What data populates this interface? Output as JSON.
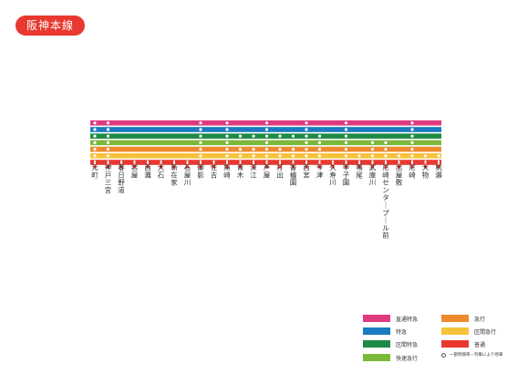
{
  "title": "阪神本線",
  "colors": {
    "badge": "#e8382f",
    "stop_dot": "#ffffff",
    "station_tick": "#e8382f",
    "station_label": "#333333"
  },
  "services": [
    {
      "id": "chokutsu_tokkyu",
      "name": "直通特急",
      "color": "#e03a7f"
    },
    {
      "id": "tokkyu",
      "name": "特急",
      "color": "#1a7bc1"
    },
    {
      "id": "kukan_tokkyu",
      "name": "区間特急",
      "color": "#1e8b45"
    },
    {
      "id": "kaisoku_kyuko",
      "name": "快速急行",
      "color": "#7cb93a"
    },
    {
      "id": "kyuko",
      "name": "急行",
      "color": "#ef8a2c"
    },
    {
      "id": "kukan_kyuko",
      "name": "区間急行",
      "color": "#f6c23a"
    },
    {
      "id": "futsu",
      "name": "普通",
      "color": "#e8382f"
    }
  ],
  "stations": [
    {
      "name": "元町",
      "stops": [
        "chokutsu_tokkyu",
        "tokkyu",
        "kukan_tokkyu",
        "kaisoku_kyuko",
        "kyuko",
        "kukan_kyuko",
        "futsu"
      ]
    },
    {
      "name": "神戸三宮",
      "stops": [
        "chokutsu_tokkyu",
        "tokkyu",
        "kukan_tokkyu",
        "kaisoku_kyuko",
        "kyuko",
        "kukan_kyuko",
        "futsu"
      ]
    },
    {
      "name": "春日野道",
      "stops": [
        "futsu"
      ]
    },
    {
      "name": "岩屋",
      "stops": [
        "futsu"
      ]
    },
    {
      "name": "西灘",
      "stops": [
        "futsu"
      ]
    },
    {
      "name": "大石",
      "stops": [
        "futsu"
      ]
    },
    {
      "name": "新在家",
      "stops": [
        "futsu"
      ]
    },
    {
      "name": "石屋川",
      "stops": [
        "futsu"
      ]
    },
    {
      "name": "御影",
      "stops": [
        "chokutsu_tokkyu",
        "tokkyu",
        "kukan_tokkyu",
        "kaisoku_kyuko",
        "kyuko",
        "kukan_kyuko",
        "futsu"
      ]
    },
    {
      "name": "住吉",
      "stops": [
        "futsu"
      ]
    },
    {
      "name": "魚崎",
      "stops": [
        "chokutsu_tokkyu",
        "tokkyu",
        "kukan_tokkyu",
        "kaisoku_kyuko",
        "kyuko",
        "kukan_kyuko",
        "futsu"
      ]
    },
    {
      "name": "青木",
      "stops": [
        "kukan_tokkyu",
        "kyuko",
        "kukan_kyuko",
        "futsu"
      ]
    },
    {
      "name": "深江",
      "stops": [
        "kukan_tokkyu",
        "kyuko",
        "kukan_kyuko",
        "futsu"
      ]
    },
    {
      "name": "芦屋",
      "stops": [
        "chokutsu_tokkyu",
        "tokkyu",
        "kukan_tokkyu",
        "kaisoku_kyuko",
        "kyuko",
        "kukan_kyuko",
        "futsu"
      ]
    },
    {
      "name": "打出",
      "stops": [
        "kukan_tokkyu",
        "kyuko",
        "kukan_kyuko",
        "futsu"
      ]
    },
    {
      "name": "香櫨園",
      "stops": [
        "kukan_tokkyu",
        "kyuko",
        "kukan_kyuko",
        "futsu"
      ]
    },
    {
      "name": "西宮",
      "stops": [
        "chokutsu_tokkyu",
        "tokkyu",
        "kukan_tokkyu",
        "kaisoku_kyuko",
        "kyuko",
        "kukan_kyuko",
        "futsu"
      ]
    },
    {
      "name": "今津",
      "stops": [
        "kukan_tokkyu",
        "kaisoku_kyuko",
        "kyuko",
        "kukan_kyuko",
        "futsu"
      ]
    },
    {
      "name": "久寿川",
      "stops": [
        "futsu"
      ]
    },
    {
      "name": "甲子園",
      "stops": [
        "chokutsu_tokkyu",
        "tokkyu",
        "kukan_tokkyu",
        "kaisoku_kyuko",
        "kyuko",
        "kukan_kyuko",
        "futsu"
      ]
    },
    {
      "name": "鳴尾",
      "stops": [
        "kukan_kyuko",
        "futsu"
      ]
    },
    {
      "name": "武庫川",
      "stops": [
        "kaisoku_kyuko",
        "kyuko",
        "kukan_kyuko",
        "futsu"
      ]
    },
    {
      "name": "尼崎センタープール前",
      "stops": [
        "kaisoku_kyuko",
        "kyuko",
        "kukan_kyuko",
        "futsu"
      ]
    },
    {
      "name": "出屋敷",
      "stops": [
        "kukan_kyuko",
        "futsu"
      ]
    },
    {
      "name": "尼崎",
      "stops": [
        "chokutsu_tokkyu",
        "tokkyu",
        "kukan_tokkyu",
        "kaisoku_kyuko",
        "kyuko",
        "kukan_kyuko",
        "futsu"
      ]
    },
    {
      "name": "大物",
      "stops": [
        "kukan_kyuko",
        "futsu"
      ]
    },
    {
      "name": "杭瀬",
      "stops": [
        "kukan_kyuko",
        "futsu"
      ]
    }
  ],
  "legend_note": "一部時間帯・列車により停車"
}
